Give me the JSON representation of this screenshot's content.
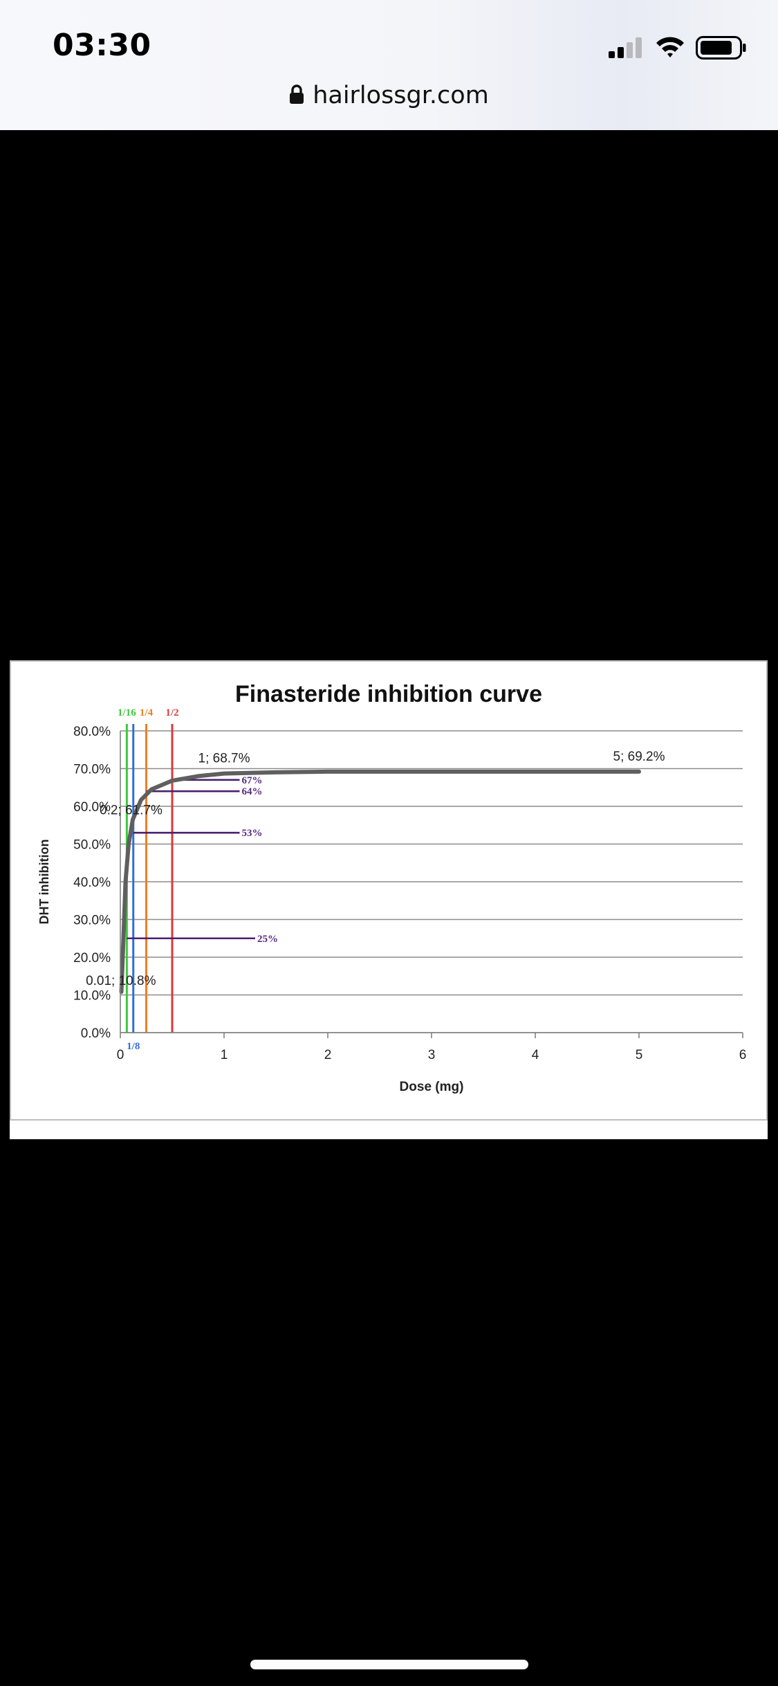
{
  "status_bar": {
    "time": "03:30",
    "icons": [
      "cellular-signal-icon",
      "wifi-icon",
      "battery-icon"
    ]
  },
  "browser": {
    "url": "hairlossgr.com",
    "lock_icon": "lock-icon"
  },
  "chart_data": {
    "type": "line",
    "title": "Finasteride inhibition curve",
    "xlabel": "Dose (mg)",
    "ylabel": "DHT inhibition",
    "xlim": [
      0,
      6
    ],
    "ylim": [
      0,
      80
    ],
    "x_ticks": [
      "0",
      "1",
      "2",
      "3",
      "4",
      "5",
      "6"
    ],
    "y_ticks": [
      "0.0%",
      "10.0%",
      "20.0%",
      "30.0%",
      "40.0%",
      "50.0%",
      "60.0%",
      "70.0%",
      "80.0%"
    ],
    "grid": true,
    "series": [
      {
        "color": "#5f5f5f",
        "x": [
          0.01,
          0.03,
          0.05,
          0.08,
          0.12,
          0.2,
          0.3,
          0.5,
          0.75,
          1,
          1.5,
          2,
          3,
          4,
          5
        ],
        "y": [
          10.8,
          25,
          40,
          50,
          56.5,
          61.7,
          64.5,
          66.8,
          68,
          68.7,
          69,
          69.2,
          69.2,
          69.2,
          69.2
        ]
      }
    ],
    "point_labels": [
      {
        "x": 0.01,
        "y": 10.8,
        "text": "0.01; 10.8%"
      },
      {
        "x": 0.2,
        "y": 61.7,
        "text": "0.2; 61.7%"
      },
      {
        "x": 1,
        "y": 68.7,
        "text": "1; 68.7%"
      },
      {
        "x": 5,
        "y": 69.2,
        "text": "5; 69.2%"
      }
    ],
    "vertical_markers": [
      {
        "label": "1/16",
        "x": 0.0625,
        "color": "#3ec83e",
        "label_position": "top"
      },
      {
        "label": "1/8",
        "x": 0.125,
        "color": "#2f6fd6",
        "label_position": "bottom"
      },
      {
        "label": "1/4",
        "x": 0.25,
        "color": "#ef7d22",
        "label_position": "top"
      },
      {
        "label": "1/2",
        "x": 0.5,
        "color": "#d93a3a",
        "label_position": "top"
      }
    ],
    "horizontal_markers": [
      {
        "label": "67%",
        "y": 67,
        "x_start": 0.5,
        "x_end": 1.15,
        "color": "#4b1f6e"
      },
      {
        "label": "64%",
        "y": 64,
        "x_start": 0.25,
        "x_end": 1.15,
        "color": "#4b1f6e"
      },
      {
        "label": "53%",
        "y": 53,
        "x_start": 0.125,
        "x_end": 1.15,
        "color": "#4b1f6e"
      },
      {
        "label": "25%",
        "y": 25,
        "x_start": 0.0625,
        "x_end": 1.3,
        "color": "#4b1f6e"
      }
    ]
  }
}
